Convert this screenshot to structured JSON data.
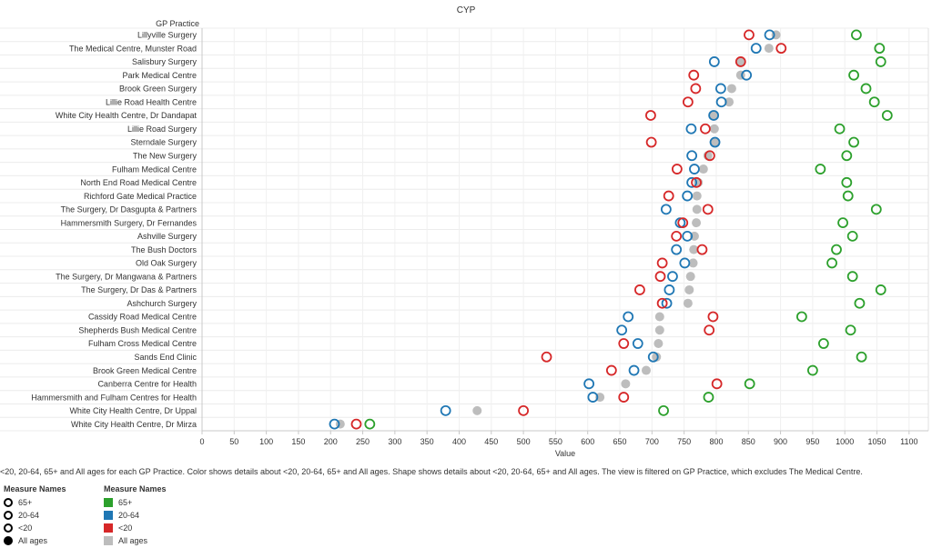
{
  "chart_data": {
    "type": "scatter",
    "title": "CYP",
    "row_header": "GP Practice",
    "xlabel": "Value",
    "xlim": [
      0,
      1130
    ],
    "xticks": [
      0,
      50,
      100,
      150,
      200,
      250,
      300,
      350,
      400,
      450,
      500,
      550,
      600,
      650,
      700,
      750,
      800,
      850,
      900,
      950,
      1000,
      1050,
      1100
    ],
    "grid": true,
    "categories": [
      "Lillyville Surgery",
      "The Medical Centre, Munster Road",
      "Salisbury Surgery",
      "Park Medical Centre",
      "Brook Green Surgery",
      "Lillie Road Health Centre",
      "White City Health Centre, Dr Dandapat",
      "Lillie Road Surgery",
      "Sterndale Surgery",
      "The New Surgery",
      "Fulham Medical Centre",
      "North End Road Medical Centre",
      "Richford Gate Medical Practice",
      "The Surgery, Dr Dasgupta & Partners",
      "Hammersmith Surgery, Dr Fernandes",
      "Ashville Surgery",
      "The Bush Doctors",
      "Old Oak Surgery",
      "The Surgery, Dr Mangwana & Partners",
      "The Surgery, Dr Das & Partners",
      "Ashchurch Surgery",
      "Cassidy Road Medical Centre",
      "Shepherds Bush Medical Centre",
      "Fulham Cross Medical Centre",
      "Sands End Clinic",
      "Brook Green Medical Centre",
      "Canberra Centre for Health",
      "Hammersmith and Fulham Centres for Health",
      "White City Health Centre, Dr Uppal",
      "White City Health Centre, Dr Mirza"
    ],
    "series": [
      {
        "name": "All ages",
        "color": "#bdbdbd",
        "shape": "filled-circle",
        "values": [
          893,
          882,
          838,
          838,
          824,
          820,
          797,
          797,
          797,
          787,
          780,
          772,
          770,
          770,
          769,
          766,
          765,
          764,
          760,
          758,
          756,
          712,
          712,
          710,
          707,
          691,
          659,
          619,
          428,
          215
        ]
      },
      {
        "name": "20-64",
        "color": "#1f77b4",
        "shape": "open-circle",
        "values": [
          883,
          862,
          797,
          847,
          807,
          808,
          796,
          761,
          798,
          762,
          766,
          762,
          755,
          722,
          744,
          755,
          738,
          751,
          732,
          727,
          723,
          663,
          653,
          678,
          702,
          672,
          602,
          608,
          379,
          206
        ]
      },
      {
        "name": "<20",
        "color": "#d62728",
        "shape": "open-circle",
        "values": [
          851,
          901,
          838,
          765,
          768,
          756,
          698,
          783,
          699,
          790,
          739,
          769,
          726,
          787,
          748,
          738,
          778,
          716,
          713,
          681,
          716,
          795,
          789,
          656,
          536,
          637,
          801,
          656,
          500,
          240
        ]
      },
      {
        "name": "65+",
        "color": "#2ca02c",
        "shape": "open-circle",
        "values": [
          1018,
          1054,
          1056,
          1014,
          1033,
          1046,
          1066,
          992,
          1014,
          1003,
          962,
          1003,
          1005,
          1049,
          997,
          1012,
          987,
          980,
          1012,
          1056,
          1023,
          933,
          1009,
          967,
          1026,
          950,
          852,
          788,
          718,
          261
        ]
      }
    ]
  },
  "caption": "<20, 20-64, 65+ and All ages for each GP Practice.  Color shows details about <20, 20-64, 65+ and All ages.  Shape shows details about <20, 20-64, 65+ and All ages. The view is filtered on GP Practice, which excludes The Medical Centre.",
  "legend_shape": {
    "title": "Measure Names",
    "items": [
      {
        "label": "65+",
        "shape": "ring"
      },
      {
        "label": "20-64",
        "shape": "ring"
      },
      {
        "label": "<20",
        "shape": "ring"
      },
      {
        "label": "All ages",
        "shape": "dot"
      }
    ]
  },
  "legend_color": {
    "title": "Measure Names",
    "items": [
      {
        "label": "65+",
        "color": "#2ca02c"
      },
      {
        "label": "20-64",
        "color": "#1f77b4"
      },
      {
        "label": "<20",
        "color": "#d62728"
      },
      {
        "label": "All ages",
        "color": "#bdbdbd"
      }
    ]
  }
}
